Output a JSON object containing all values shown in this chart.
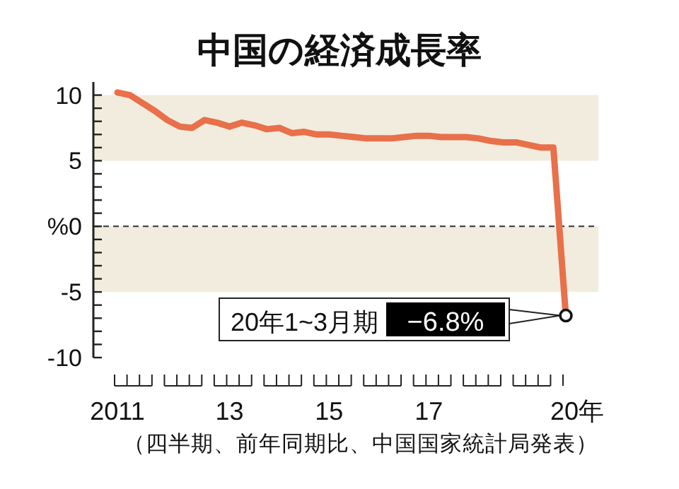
{
  "chart_data": {
    "type": "line",
    "title": "中国の経済成長率",
    "categories": [
      "2011",
      null,
      null,
      null,
      null,
      null,
      null,
      null,
      null,
      "13",
      null,
      null,
      null,
      null,
      null,
      null,
      null,
      "15",
      null,
      null,
      null,
      null,
      null,
      null,
      null,
      "17",
      null,
      null,
      null,
      null,
      null,
      null,
      null,
      null,
      null,
      null,
      "20年"
    ],
    "series": [
      {
        "color": "#e8704a",
        "values": [
          10.2,
          10.0,
          9.4,
          8.8,
          8.1,
          7.6,
          7.5,
          8.1,
          7.9,
          7.6,
          7.9,
          7.7,
          7.4,
          7.5,
          7.1,
          7.2,
          7.0,
          7.0,
          6.9,
          6.8,
          6.7,
          6.7,
          6.7,
          6.8,
          6.9,
          6.9,
          6.8,
          6.8,
          6.8,
          6.7,
          6.5,
          6.4,
          6.4,
          6.2,
          6.0,
          6.0,
          -6.8
        ],
        "value_labels": [
          null,
          null,
          null,
          null,
          null,
          null,
          null,
          null,
          null,
          null,
          null,
          null,
          null,
          null,
          null,
          null,
          null,
          null,
          null,
          null,
          null,
          null,
          null,
          null,
          null,
          null,
          null,
          null,
          null,
          null,
          null,
          null,
          null,
          null,
          null,
          null,
          "−6.8%"
        ]
      }
    ],
    "ylim": [
      -10,
      11
    ],
    "yticks": [
      {
        "value": -10,
        "label": "-10"
      },
      {
        "value": -9,
        "label": null
      },
      {
        "value": -8,
        "label": null
      },
      {
        "value": -7,
        "label": null
      },
      {
        "value": -6,
        "label": null
      },
      {
        "value": -5,
        "label": "-5"
      },
      {
        "value": -4,
        "label": null
      },
      {
        "value": -3,
        "label": null
      },
      {
        "value": -2,
        "label": null
      },
      {
        "value": -1,
        "label": null
      },
      {
        "value": 0,
        "label": "%0"
      },
      {
        "value": 1,
        "label": null
      },
      {
        "value": 2,
        "label": null
      },
      {
        "value": 3,
        "label": null
      },
      {
        "value": 4,
        "label": null
      },
      {
        "value": 5,
        "label": "5"
      },
      {
        "value": 6,
        "label": null
      },
      {
        "value": 7,
        "label": null
      },
      {
        "value": 8,
        "label": null
      },
      {
        "value": 9,
        "label": null
      },
      {
        "value": 10,
        "label": "10"
      }
    ],
    "bands": [
      {
        "axis": "y",
        "from": 5,
        "to": 10,
        "color": "#f1ecdd"
      },
      {
        "axis": "y",
        "from": -5,
        "to": 0,
        "color": "#f1ecdd"
      }
    ],
    "ref_lines": [
      {
        "axis": "y",
        "value": 0,
        "line_style": "dashed",
        "color": "#333333"
      }
    ],
    "annotations": [
      "20年1~3月期",
      "（四半期、前年同期比、中国国家統計局発表）"
    ],
    "grid": false,
    "marker": "none",
    "line_style": "solid"
  }
}
